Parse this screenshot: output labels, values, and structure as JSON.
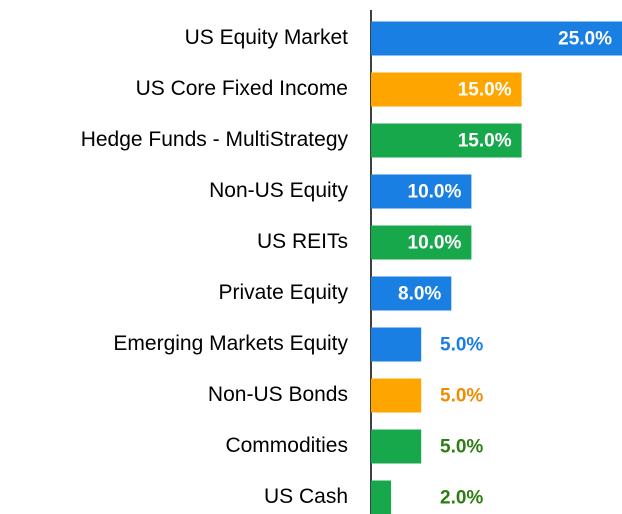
{
  "chart_data": {
    "type": "hbar",
    "categories": [
      "US Equity Market",
      "US Core Fixed Income",
      "Hedge Funds - MultiStrategy",
      "Non-US Equity",
      "US REITs",
      "Private Equity",
      "Emerging Markets Equity",
      "Non-US Bonds",
      "Commodities",
      "US Cash"
    ],
    "values": [
      25,
      15,
      15,
      10,
      10,
      8,
      5,
      5,
      5,
      2
    ],
    "value_labels": [
      "25.0%",
      "15.0%",
      "15.0%",
      "10.0%",
      "10.0%",
      "8.0%",
      "5.0%",
      "5.0%",
      "5.0%",
      "2.0%"
    ],
    "colors": [
      "#1a7fe3",
      "#ffa500",
      "#18a84c",
      "#1a7fe3",
      "#18a84c",
      "#1a7fe3",
      "#1a7fe3",
      "#ffa500",
      "#18a84c",
      "#18a84c"
    ],
    "label_colors": [
      "#ffffff",
      "#ffffff",
      "#ffffff",
      "#ffffff",
      "#ffffff",
      "#ffffff",
      "#1a7fe3",
      "#f08c00",
      "#2e7d12",
      "#2e7d12"
    ],
    "xlim": [
      0,
      25
    ]
  }
}
